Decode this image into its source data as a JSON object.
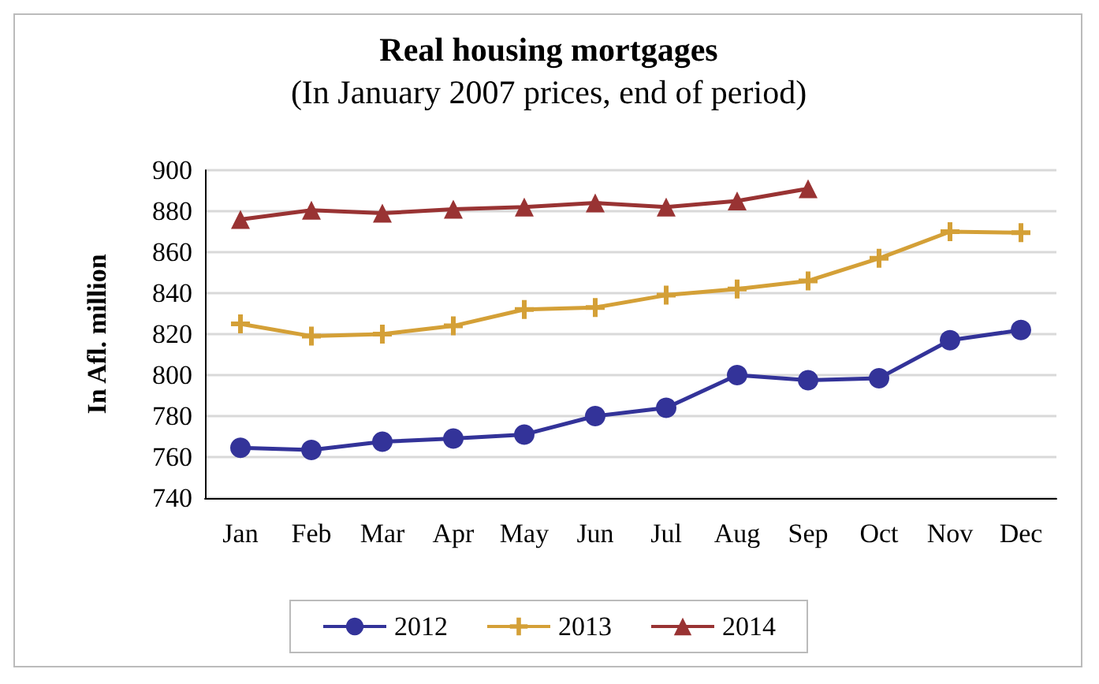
{
  "chart_data": {
    "type": "line",
    "title": "Real housing mortgages",
    "subtitle": "(In January 2007 prices, end of period)",
    "ylabel": "In Afl. million",
    "categories": [
      "Jan",
      "Feb",
      "Mar",
      "Apr",
      "May",
      "Jun",
      "Jul",
      "Aug",
      "Sep",
      "Oct",
      "Nov",
      "Dec"
    ],
    "series": [
      {
        "name": "2012",
        "color": "#333399",
        "marker": "circle",
        "values": [
          764.5,
          763.5,
          767.5,
          769,
          771,
          780,
          784,
          800,
          797.5,
          798.5,
          817,
          822
        ]
      },
      {
        "name": "2013",
        "color": "#d4a037",
        "marker": "cross",
        "values": [
          825,
          819,
          820,
          824,
          832,
          833,
          839,
          842,
          846,
          857,
          870,
          869.5
        ]
      },
      {
        "name": "2014",
        "color": "#993333",
        "marker": "triangle",
        "values": [
          876,
          880.5,
          879,
          881,
          882,
          884,
          882,
          885,
          891,
          null,
          null,
          null
        ]
      }
    ],
    "ylim": [
      740,
      900
    ],
    "yticks": [
      740,
      760,
      780,
      800,
      820,
      840,
      860,
      880,
      900
    ],
    "grid": "y",
    "legend": "bottom"
  }
}
